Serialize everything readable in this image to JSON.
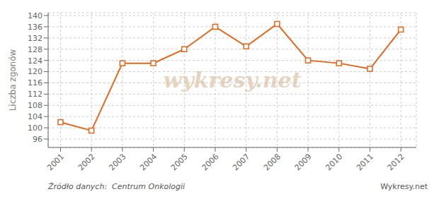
{
  "chart_data": {
    "type": "line",
    "x": [
      2001,
      2002,
      2003,
      2004,
      2005,
      2006,
      2007,
      2008,
      2009,
      2010,
      2011,
      2012
    ],
    "values": [
      102,
      99,
      123,
      123,
      128,
      136,
      129,
      137,
      124,
      123,
      121,
      135
    ],
    "color": "#e8651a",
    "marker": "square",
    "ylabel": "Liczba zgonów",
    "xlim": [
      2000.6,
      2012.5
    ],
    "xticks": [
      2001,
      2002,
      2003,
      2004,
      2005,
      2006,
      2007,
      2008,
      2009,
      2010,
      2011,
      2012
    ],
    "ylim": [
      93,
      141
    ],
    "yticks": [
      96,
      100,
      104,
      108,
      112,
      116,
      120,
      124,
      128,
      132,
      136,
      140
    ],
    "grid": true,
    "annotations": [
      "wykresy.net",
      "Źródło danych:  Centrum Onkologii",
      "Wykresy.net"
    ]
  }
}
